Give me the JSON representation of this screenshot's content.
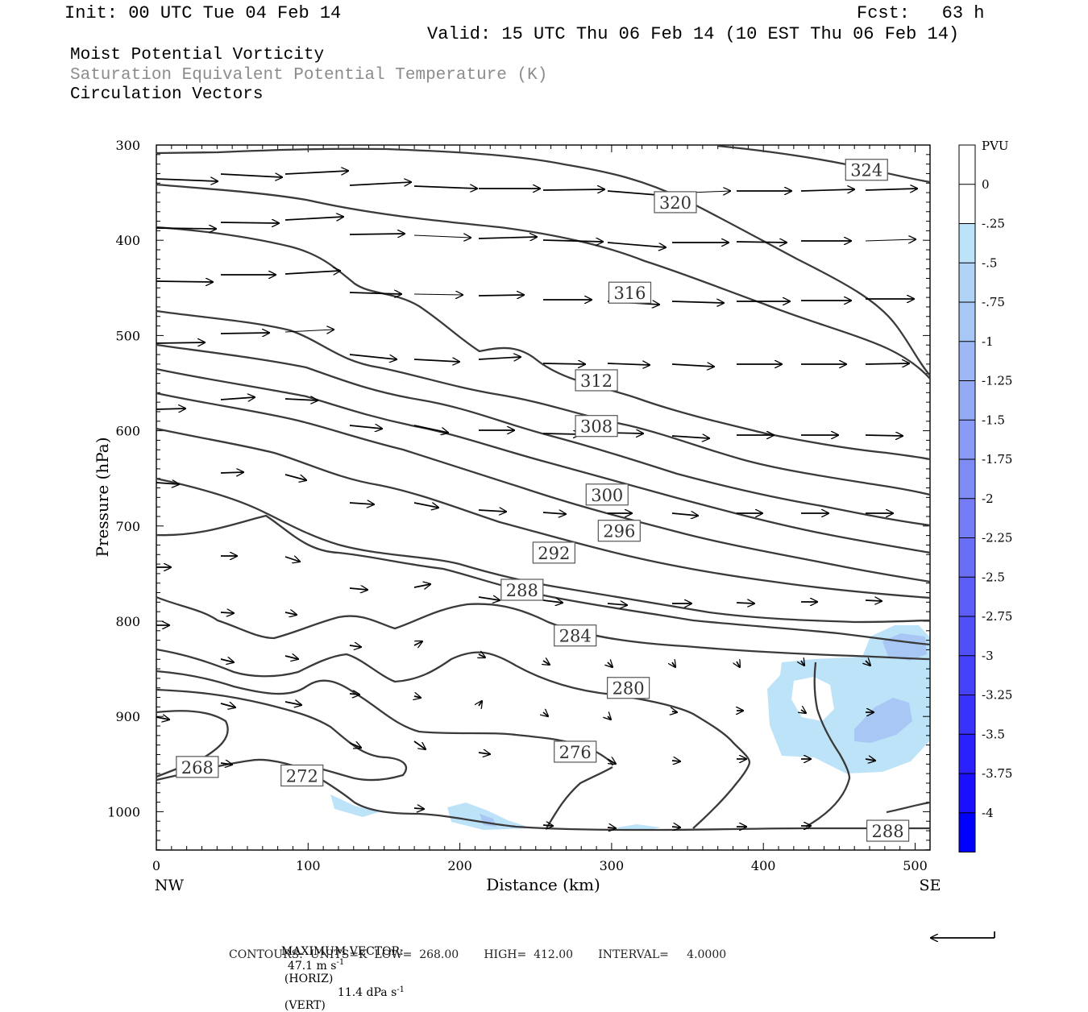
{
  "header": {
    "init": "Init: 00 UTC Tue 04 Feb 14",
    "fcst": "Fcst:   63 h",
    "valid": "Valid: 15 UTC Thu 06 Feb 14 (10 EST Thu 06 Feb 14)"
  },
  "titles": {
    "line1": "Moist Potential Vorticity",
    "line2": "Saturation Equivalent Potential Temperature (K)",
    "line3": "Circulation Vectors"
  },
  "colors": {
    "contour": "#3a3a3a",
    "subtitle_gray": "#8c8c8c",
    "shade_light": "#bde3f8",
    "shade_mid": "#a9c7f5"
  },
  "footer": {
    "max_vector_label": "MAXIMUM VECTOR:",
    "horiz_value": "47.1 m s",
    "horiz_exp": "-1",
    "horiz_tag": "(HORIZ)",
    "vert_value": "11.4 dPa s",
    "vert_exp": "-1",
    "vert_tag": "(VERT)",
    "contours": "CONTOURS:  UNITS=K  LOW=  268.00       HIGH=  412.00       INTERVAL=     4.0000"
  },
  "chart_data": {
    "type": "cross-section",
    "xlabel": "Distance (km)",
    "ylabel": "Pressure (hPa)",
    "xlim": [
      0,
      510
    ],
    "ylim": [
      300,
      1040
    ],
    "x_ticks": [
      0,
      100,
      200,
      300,
      400,
      500
    ],
    "y_ticks": [
      300,
      400,
      500,
      600,
      700,
      800,
      900,
      1000
    ],
    "x_end_labels": {
      "left": "NW",
      "right": "SE"
    },
    "contour_labels": [
      {
        "text": "324",
        "x": 468,
        "p": 326
      },
      {
        "text": "320",
        "x": 342,
        "p": 360
      },
      {
        "text": "316",
        "x": 312,
        "p": 455
      },
      {
        "text": "312",
        "x": 290,
        "p": 547
      },
      {
        "text": "308",
        "x": 290,
        "p": 595
      },
      {
        "text": "300",
        "x": 297,
        "p": 667
      },
      {
        "text": "296",
        "x": 305,
        "p": 705
      },
      {
        "text": "292",
        "x": 262,
        "p": 728
      },
      {
        "text": "288",
        "x": 241,
        "p": 767
      },
      {
        "text": "284",
        "x": 276,
        "p": 815
      },
      {
        "text": "280",
        "x": 311,
        "p": 870
      },
      {
        "text": "276",
        "x": 276,
        "p": 937
      },
      {
        "text": "268",
        "x": 27,
        "p": 953
      },
      {
        "text": "272",
        "x": 96,
        "p": 962
      },
      {
        "text": "288",
        "x": 482,
        "p": 1020
      }
    ],
    "colorbar": {
      "unit": "PVU",
      "labels": [
        "0",
        "-.25",
        "-.5",
        "-.75",
        "-1",
        "-1.25",
        "-1.5",
        "-1.75",
        "-2",
        "-2.25",
        "-2.5",
        "-2.75",
        "-3",
        "-3.25",
        "-3.5",
        "-3.75",
        "-4"
      ],
      "colors": [
        "#ffffff",
        "#ffffff",
        "#bde3f8",
        "#b1d4f6",
        "#a9c7f5",
        "#9eb8f5",
        "#95aaf5",
        "#8a9bf5",
        "#7f8cf5",
        "#747df6",
        "#696ef6",
        "#5d5ef7",
        "#5150f8",
        "#4541f9",
        "#3832fa",
        "#2a21fc",
        "#1a10fd",
        "#0000ff"
      ]
    }
  }
}
